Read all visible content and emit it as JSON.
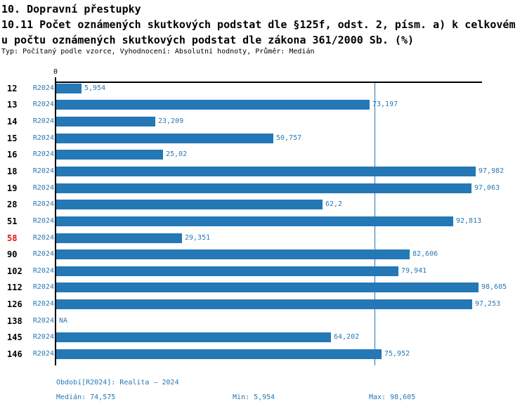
{
  "header": {
    "title": "10. Dopravní přestupky",
    "subtitle_lines": [
      "10.11 Počet oznámených skutkových podstat dle §125f, odst. 2, písm. a) k celkovém",
      "u počtu oznámených skutkových podstat dle zákona 361/2000 Sb. (%)"
    ],
    "meta": "Typ: Počítaný podle vzorce, Vyhodnocení: Absolutní hodnoty, Průměr: Medián"
  },
  "axis": {
    "zero_label": "0"
  },
  "chart_data": {
    "type": "bar",
    "orientation": "horizontal",
    "title": "10. Dopravní přestupky",
    "subtitle": "10.11 Počet oznámených skutkových podstat dle §125f, odst. 2, písm. a) k celkovému počtu oznámených skutkových podstat dle zákona 361/2000 Sb. (%)",
    "categories": [
      "12",
      "13",
      "14",
      "15",
      "16",
      "18",
      "19",
      "28",
      "51",
      "58",
      "90",
      "102",
      "112",
      "126",
      "138",
      "145",
      "146"
    ],
    "row_period_label": "R2024",
    "series": [
      {
        "name": "R2024",
        "values": [
          5.954,
          73.197,
          23.209,
          50.757,
          25.02,
          97.982,
          97.063,
          62.2,
          92.813,
          29.351,
          82.606,
          79.941,
          98.605,
          97.253,
          null,
          64.202,
          75.952
        ]
      }
    ],
    "value_labels": [
      "5,954",
      "73,197",
      "23,209",
      "50,757",
      "25,02",
      "97,982",
      "97,063",
      "62,2",
      "92,813",
      "29,351",
      "82,606",
      "79,941",
      "98,605",
      "97,253",
      "NA",
      "64,202",
      "75,952"
    ],
    "highlighted_categories": [
      "58"
    ],
    "median": 74.575,
    "min": 5.954,
    "max": 98.605,
    "xlim": [
      0,
      99.5
    ],
    "x_tick_labels": [
      "0"
    ],
    "grid": false,
    "legend_position": "none"
  },
  "footer": {
    "period": "Období[R2024]: Realita – 2024",
    "median": "Medián: 74,575",
    "min": "Min: 5,954",
    "max": "Max: 98,605"
  },
  "colors": {
    "bar": "#2478b6",
    "blue_text": "#2878b4",
    "highlight_red": "#e21414",
    "median_line": "#2478b6",
    "axis": "#000000"
  }
}
